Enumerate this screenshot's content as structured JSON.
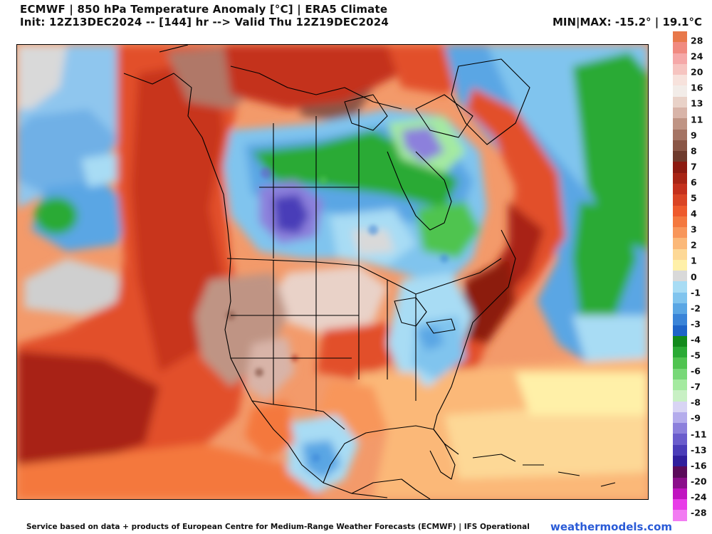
{
  "header": {
    "title_line1": "ECMWF | 850 hPa Temperature Anomaly [°C] | ERA5 Climate",
    "title_line2": "Init: 12Z13DEC2024 -- [144] hr --> Valid Thu 12Z19DEC2024",
    "minmax": "MIN|MAX: -15.2° | 19.1°C"
  },
  "colorbar": {
    "labels": [
      "28",
      "24",
      "20",
      "16",
      "13",
      "11",
      "9",
      "8",
      "7",
      "6",
      "5",
      "4",
      "3",
      "2",
      "1",
      "0",
      "-1",
      "-2",
      "-3",
      "-4",
      "-5",
      "-6",
      "-7",
      "-8",
      "-9",
      "-11",
      "-13",
      "-16",
      "-20",
      "-24",
      "-28"
    ],
    "colors": [
      "#e8784a",
      "#f08a80",
      "#f5a8a8",
      "#f6c4c0",
      "#f7e2dc",
      "#f2ece8",
      "#e9d2c8",
      "#d8b4a8",
      "#bf9484",
      "#a57464",
      "#8a5646",
      "#6e3a2c",
      "#8c1a10",
      "#a82414",
      "#c4301c",
      "#da4424",
      "#ee5a2c",
      "#f4783e",
      "#f8965a",
      "#fbb878",
      "#fdd896",
      "#fff0a8",
      "#d9d9d9",
      "#a8dcf4",
      "#80c4ee",
      "#5aa6e4",
      "#3a84d8",
      "#1e64c8",
      "#128a1c",
      "#2aaa34",
      "#50c450",
      "#78d878",
      "#a4eaa0",
      "#c8f0c4",
      "#d8d4f4",
      "#b4acec",
      "#8c80dc",
      "#6a5ccc",
      "#4a3cb8",
      "#301e9c",
      "#5a0a5a",
      "#8a0e8a",
      "#c014c0",
      "#e83ce8",
      "#f27cf2"
    ]
  },
  "footer": {
    "credit": "Service based on data + products of European Centre for Medium-Range Weather Forecasts (ECMWF) | IFS Operational",
    "site": "weathermodels.com"
  }
}
